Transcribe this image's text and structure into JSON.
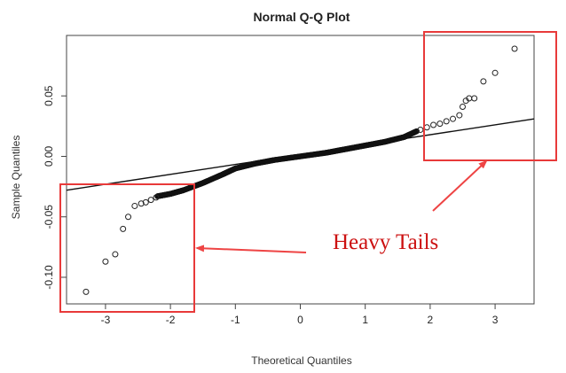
{
  "chart_data": {
    "type": "scatter",
    "title": "Normal Q-Q Plot",
    "xlabel": "Theoretical Quantiles",
    "ylabel": "Sample Quantiles",
    "xlim": [
      -3.6,
      3.6
    ],
    "ylim": [
      -0.122,
      0.1
    ],
    "xticks": [
      -3,
      -2,
      -1,
      0,
      1,
      2,
      3
    ],
    "xtick_labels": [
      "-3",
      "-2",
      "-1",
      "0",
      "1",
      "2",
      "3"
    ],
    "yticks": [
      -0.1,
      -0.05,
      0.0,
      0.05
    ],
    "ytick_labels": [
      "-0.10",
      "-0.05",
      "0.00",
      "0.05"
    ],
    "reference_line": {
      "x": [
        -3.6,
        3.6
      ],
      "y": [
        -0.028,
        0.031
      ]
    },
    "tail_points": {
      "x": [
        -3.3,
        -3.0,
        -2.85,
        -2.73,
        -2.65,
        -2.55,
        -2.45,
        -2.38,
        -2.3,
        -2.22,
        1.85,
        1.95,
        2.05,
        2.15,
        2.25,
        2.35,
        2.45,
        2.5,
        2.55,
        2.6,
        2.68,
        2.82,
        3.0,
        3.3
      ],
      "y": [
        -0.112,
        -0.087,
        -0.081,
        -0.06,
        -0.05,
        -0.041,
        -0.039,
        -0.038,
        -0.036,
        -0.034,
        0.022,
        0.024,
        0.026,
        0.027,
        0.029,
        0.031,
        0.034,
        0.041,
        0.046,
        0.048,
        0.048,
        0.062,
        0.069,
        0.089
      ]
    },
    "body_curve": {
      "x": [
        -2.2,
        -2.0,
        -1.8,
        -1.5,
        -1.2,
        -1.0,
        -0.7,
        -0.4,
        0,
        0.4,
        0.7,
        1.0,
        1.3,
        1.6,
        1.8
      ],
      "y": [
        -0.033,
        -0.031,
        -0.028,
        -0.022,
        -0.015,
        -0.01,
        -0.006,
        -0.003,
        0.0,
        0.003,
        0.006,
        0.009,
        0.012,
        0.016,
        0.021
      ]
    }
  },
  "annotation": {
    "text": "Heavy Tails",
    "color": "#e02020",
    "arrow_color": "#ee4444"
  }
}
